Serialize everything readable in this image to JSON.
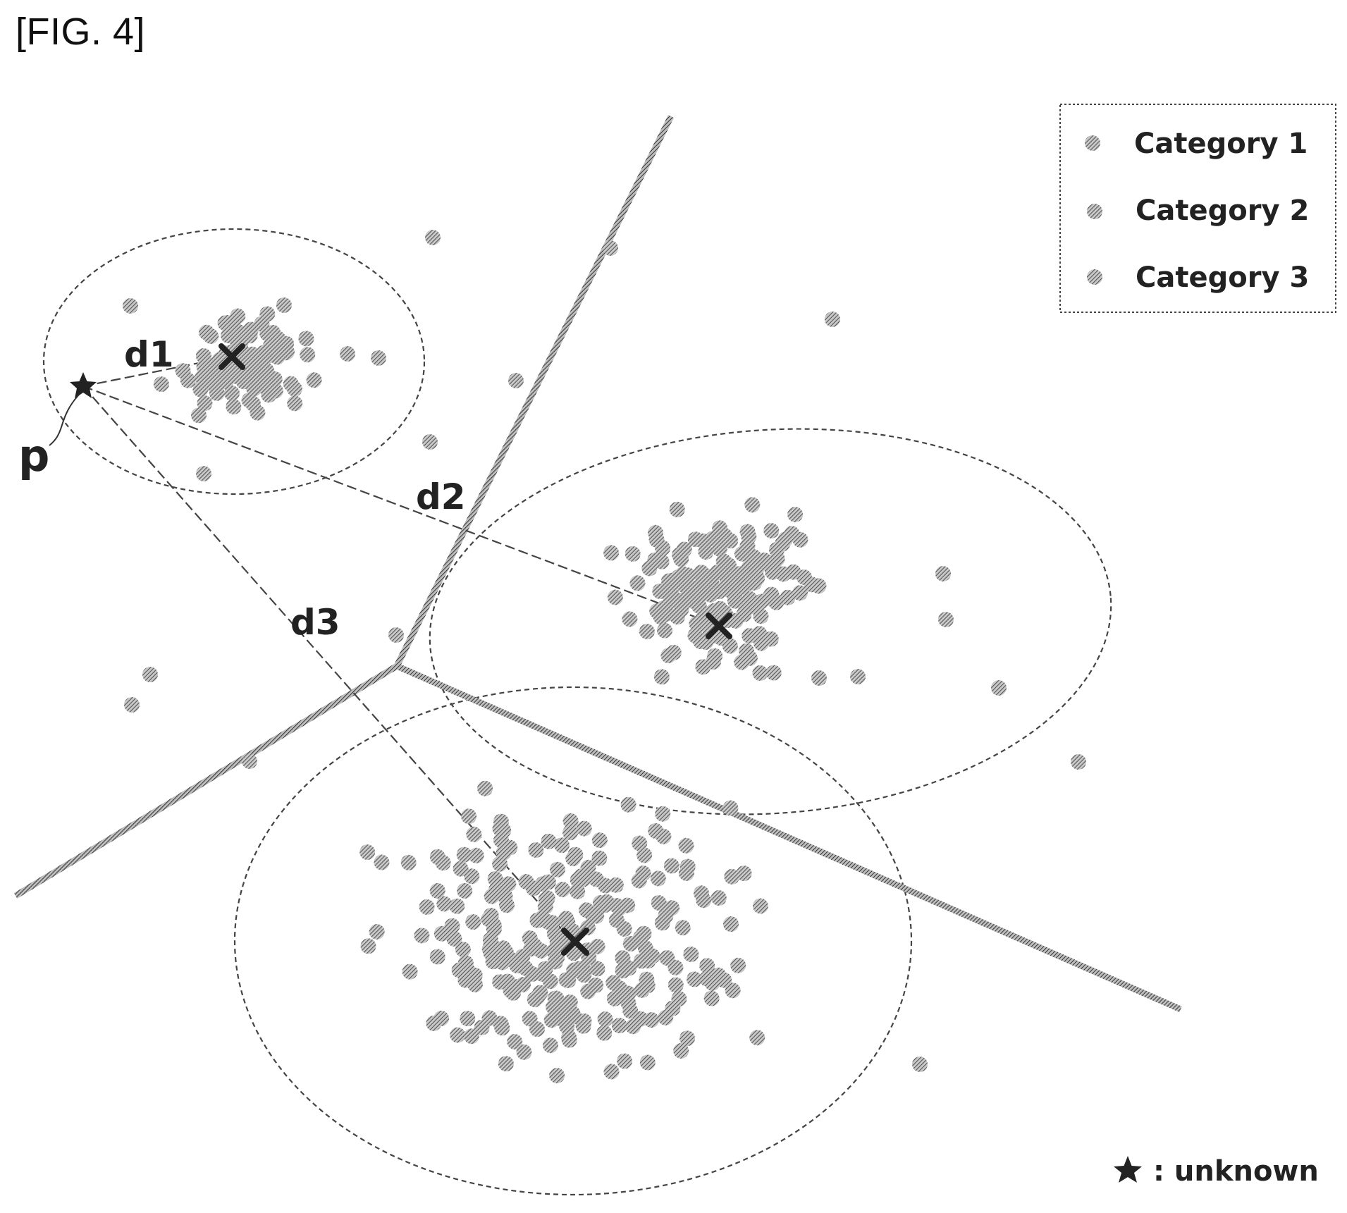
{
  "figure": {
    "label": "[FIG. 4]"
  },
  "labels": {
    "d1": "d1",
    "d2": "d2",
    "d3": "d3",
    "p": "p"
  },
  "legend": {
    "items": [
      {
        "label": "Category 1",
        "icon": "hatched-dot-icon"
      },
      {
        "label": "Category 2",
        "icon": "hatched-dot-icon"
      },
      {
        "label": "Category 3",
        "icon": "hatched-dot-icon"
      }
    ],
    "unknown_label": ": unknown",
    "unknown_icon": "star-icon"
  },
  "colors": {
    "dot": "#6f6f6f",
    "line": "#555555",
    "dash": "#444444",
    "text": "#222222"
  }
}
